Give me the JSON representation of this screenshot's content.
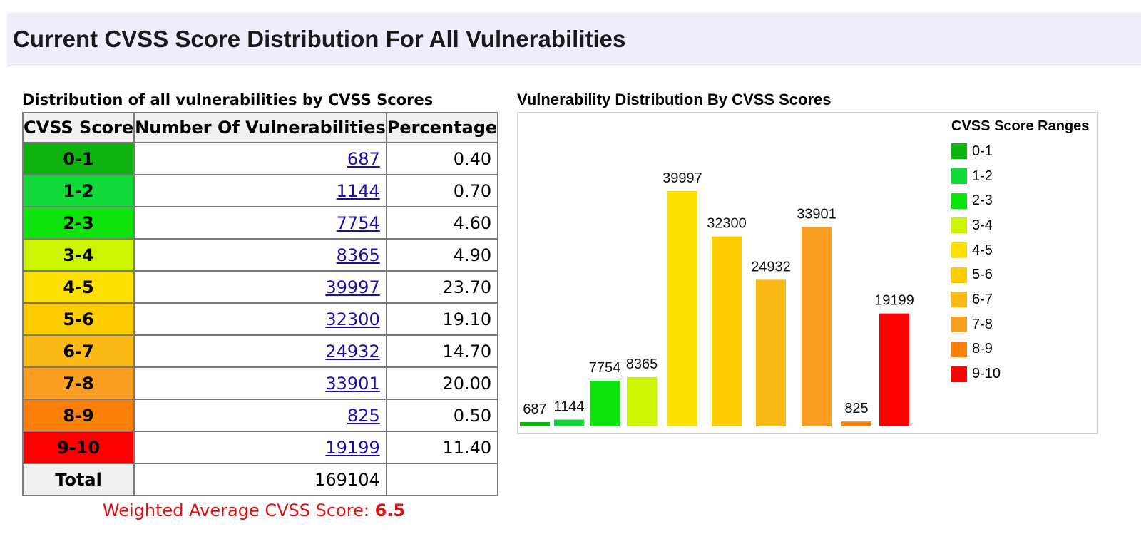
{
  "page_title": "Current CVSS Score Distribution For All Vulnerabilities",
  "table": {
    "title": "Distribution of all vulnerabilities by CVSS Scores",
    "headers": [
      "CVSS Score",
      "Number Of Vulnerabilities",
      "Percentage"
    ],
    "rows": [
      {
        "score": "0-1",
        "count": "687",
        "percent": "0.40",
        "color": "#0fb30f"
      },
      {
        "score": "1-2",
        "count": "1144",
        "percent": "0.70",
        "color": "#11d93a"
      },
      {
        "score": "2-3",
        "count": "7754",
        "percent": "4.60",
        "color": "#0ee30e"
      },
      {
        "score": "3-4",
        "count": "8365",
        "percent": "4.90",
        "color": "#ccf400"
      },
      {
        "score": "4-5",
        "count": "39997",
        "percent": "23.70",
        "color": "#fce000"
      },
      {
        "score": "5-6",
        "count": "32300",
        "percent": "19.10",
        "color": "#fccb00"
      },
      {
        "score": "6-7",
        "count": "24932",
        "percent": "14.70",
        "color": "#fcbb14"
      },
      {
        "score": "7-8",
        "count": "33901",
        "percent": "20.00",
        "color": "#fb9e24"
      },
      {
        "score": "8-9",
        "count": "825",
        "percent": "0.50",
        "color": "#fc8008"
      },
      {
        "score": "9-10",
        "count": "19199",
        "percent": "11.40",
        "color": "#fc0000"
      }
    ],
    "total_label": "Total",
    "total_value": "169104"
  },
  "weighted_average": {
    "label": "Weighted Average CVSS Score: ",
    "value": "6.5"
  },
  "chart_data": {
    "type": "bar",
    "title": "Vulnerability Distribution By CVSS Scores",
    "categories": [
      "0-1",
      "1-2",
      "2-3",
      "3-4",
      "4-5",
      "5-6",
      "6-7",
      "7-8",
      "8-9",
      "9-10"
    ],
    "values": [
      687,
      1144,
      7754,
      8365,
      39997,
      32300,
      24932,
      33901,
      825,
      19199
    ],
    "colors": [
      "#0fb30f",
      "#11d93a",
      "#0ee30e",
      "#ccf400",
      "#fce000",
      "#fccb00",
      "#fcbb14",
      "#fb9e24",
      "#fc8008",
      "#fc0000"
    ],
    "legend_title": "CVSS Score Ranges",
    "legend_position": "top-right",
    "xlabel": "",
    "ylabel": "",
    "ylim": [
      0,
      40000
    ],
    "grid": false
  }
}
